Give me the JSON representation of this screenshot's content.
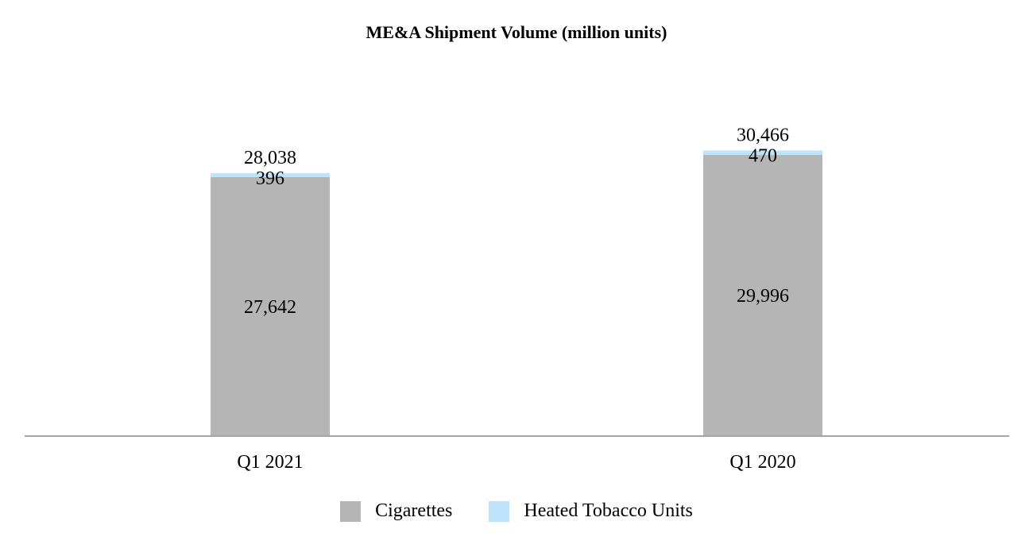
{
  "chart_data": {
    "type": "bar",
    "stacked": true,
    "title": "ME&A Shipment Volume (million units)",
    "categories": [
      "Q1 2021",
      "Q1 2020"
    ],
    "series": [
      {
        "name": "Cigarettes",
        "values": [
          27642,
          29996
        ],
        "color": "#b5b5b5",
        "labels": [
          "27,642",
          "29,996"
        ]
      },
      {
        "name": "Heated Tobacco Units",
        "values": [
          396,
          470
        ],
        "color": "#bde3fb",
        "labels": [
          "396",
          "470"
        ]
      }
    ],
    "totals": [
      28038,
      30466
    ],
    "total_labels": [
      "28,038",
      "30,466"
    ],
    "xlabel": "",
    "ylabel": "",
    "ylim": [
      0,
      35000
    ],
    "grid": false,
    "legend": "bottom-center",
    "axis_color": "#a6a6a6"
  }
}
